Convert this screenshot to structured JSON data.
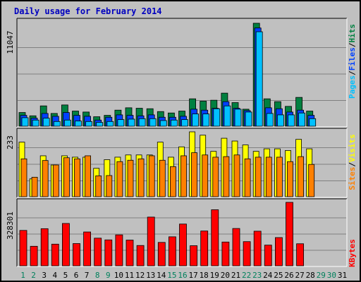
{
  "title": "Daily usage for February 2014",
  "colors": {
    "hits": "#008040",
    "files": "#0040ff",
    "pages": "#00c0ff",
    "visits": "#ffff00",
    "sites": "#ff8000",
    "kbytes": "#ff0000",
    "weekend_label": "#00805c",
    "weekday_label": "#000000",
    "title": "#0000c0"
  },
  "chart_data": [
    {
      "type": "bar",
      "name": "hits-files-pages",
      "ymax_label": "11047",
      "ymax": 11047,
      "legend": {
        "pages": "Pages",
        "files": "Files",
        "hits": "Hits",
        "sep": "/"
      },
      "categories": [
        "1",
        "2",
        "3",
        "4",
        "5",
        "6",
        "7",
        "8",
        "9",
        "10",
        "11",
        "12",
        "13",
        "14",
        "15",
        "16",
        "17",
        "18",
        "19",
        "20",
        "21",
        "22",
        "23",
        "24",
        "25",
        "26",
        "27",
        "28",
        "29",
        "30",
        "31"
      ],
      "weekend_days": [
        1,
        2,
        8,
        9,
        15,
        16,
        22,
        23,
        29,
        30
      ],
      "series": [
        {
          "name": "Hits",
          "values": [
            1450,
            1100,
            2150,
            1350,
            2250,
            1600,
            1500,
            1000,
            1150,
            1700,
            1950,
            1900,
            1850,
            1550,
            1400,
            1600,
            2900,
            2650,
            2750,
            3500,
            2500,
            1800,
            10900,
            2900,
            2600,
            2100,
            3050,
            1600,
            0,
            0,
            0
          ]
        },
        {
          "name": "Files",
          "values": [
            1150,
            850,
            1350,
            1050,
            1450,
            1150,
            1050,
            650,
            950,
            1200,
            1150,
            1100,
            1200,
            950,
            950,
            1050,
            1800,
            1700,
            1900,
            2600,
            1900,
            1650,
            10400,
            1950,
            1850,
            1500,
            1700,
            1150,
            0,
            0,
            0
          ]
        },
        {
          "name": "Pages",
          "values": [
            900,
            650,
            850,
            500,
            650,
            550,
            500,
            400,
            500,
            700,
            750,
            800,
            800,
            600,
            650,
            700,
            1300,
            1300,
            1850,
            2150,
            1800,
            1500,
            10000,
            1350,
            1200,
            1200,
            1400,
            800,
            0,
            0,
            0
          ]
        }
      ]
    },
    {
      "type": "bar",
      "name": "visits-sites",
      "ymax_label": "233",
      "ymax": 233,
      "legend": {
        "sites": "Sites",
        "visits": "Visits",
        "sep": "/"
      },
      "categories": [
        "1",
        "2",
        "3",
        "4",
        "5",
        "6",
        "7",
        "8",
        "9",
        "10",
        "11",
        "12",
        "13",
        "14",
        "15",
        "16",
        "17",
        "18",
        "19",
        "20",
        "21",
        "22",
        "23",
        "24",
        "25",
        "26",
        "27",
        "28",
        "29",
        "30",
        "31"
      ],
      "series": [
        {
          "name": "Visits",
          "values": [
            196,
            64,
            147,
            114,
            147,
            142,
            142,
            102,
            133,
            142,
            150,
            150,
            150,
            196,
            142,
            179,
            233,
            221,
            163,
            210,
            200,
            186,
            163,
            172,
            172,
            166,
            206,
            172,
            0,
            0,
            0
          ]
        },
        {
          "name": "Sites",
          "values": [
            136,
            70,
            130,
            114,
            140,
            136,
            147,
            75,
            76,
            126,
            131,
            136,
            147,
            131,
            108,
            147,
            158,
            150,
            142,
            144,
            150,
            136,
            142,
            142,
            142,
            126,
            144,
            116,
            0,
            0,
            0
          ]
        }
      ]
    },
    {
      "type": "bar",
      "name": "kbytes",
      "ymax_label": "328301",
      "ymax": 328301,
      "legend": {
        "kbytes": "KBytes"
      },
      "categories": [
        "1",
        "2",
        "3",
        "4",
        "5",
        "6",
        "7",
        "8",
        "9",
        "10",
        "11",
        "12",
        "13",
        "14",
        "15",
        "16",
        "17",
        "18",
        "19",
        "20",
        "21",
        "22",
        "23",
        "24",
        "25",
        "26",
        "27",
        "28",
        "29",
        "30",
        "31"
      ],
      "series": [
        {
          "name": "KBytes",
          "values": [
            183000,
            101000,
            192000,
            112000,
            219000,
            115000,
            175000,
            143000,
            134000,
            160000,
            133000,
            105000,
            252000,
            121000,
            150000,
            216000,
            104000,
            180000,
            290000,
            123000,
            193000,
            125000,
            179000,
            107000,
            146000,
            328301,
            114000,
            0,
            0,
            0,
            0
          ]
        }
      ]
    }
  ]
}
